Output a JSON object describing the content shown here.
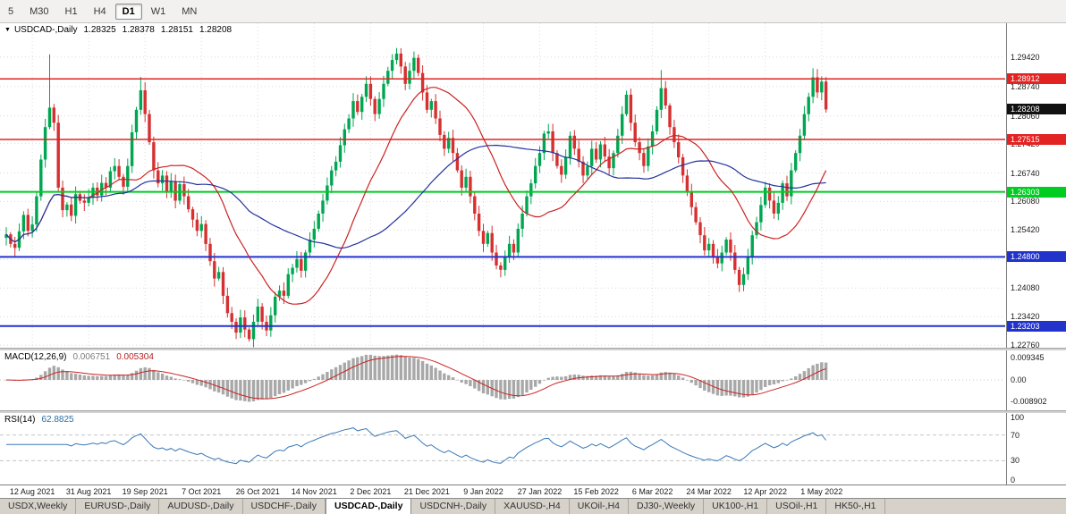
{
  "toolbar": {
    "timeframes": [
      {
        "label": "5",
        "active": false
      },
      {
        "label": "M30",
        "active": false
      },
      {
        "label": "H1",
        "active": false
      },
      {
        "label": "H4",
        "active": false
      },
      {
        "label": "D1",
        "active": true
      },
      {
        "label": "W1",
        "active": false
      },
      {
        "label": "MN",
        "active": false
      }
    ]
  },
  "main_chart": {
    "header": {
      "collapse_icon": "▼",
      "symbol": "USDCAD-,Daily",
      "open": "1.28325",
      "high": "1.28378",
      "low": "1.28151",
      "close": "1.28208"
    },
    "price_axis_labels": [
      "1.29420",
      "1.28740",
      "1.28060",
      "1.27420",
      "1.26740",
      "1.26080",
      "1.25420",
      "1.24740",
      "1.24080",
      "1.23420",
      "1.22760"
    ],
    "current_price": {
      "label": "1.28208",
      "value": 1.28208,
      "box_color": "#111111"
    }
  },
  "macd_panel": {
    "title": "MACD(12,26,9)",
    "value_main": "0.006751",
    "value_signal": "0.005304",
    "axis": [
      "0.009345",
      "0.00",
      "-0.008902"
    ]
  },
  "rsi_panel": {
    "title": "RSI(14)",
    "value": "62.8825",
    "axis": [
      100,
      70,
      30,
      0
    ],
    "guide_levels": [
      70,
      30
    ]
  },
  "tabs": [
    {
      "label": "USDX,Weekly",
      "active": false
    },
    {
      "label": "EURUSD-,Daily",
      "active": false
    },
    {
      "label": "AUDUSD-,Daily",
      "active": false
    },
    {
      "label": "USDCHF-,Daily",
      "active": false
    },
    {
      "label": "USDCAD-,Daily",
      "active": true
    },
    {
      "label": "USDCNH-,Daily",
      "active": false
    },
    {
      "label": "XAUUSD-,H4",
      "active": false
    },
    {
      "label": "UKOil-,H4",
      "active": false
    },
    {
      "label": "DJ30-,Weekly",
      "active": false
    },
    {
      "label": "UK100-,H1",
      "active": false
    },
    {
      "label": "USOil-,H1",
      "active": false
    },
    {
      "label": "HK50-,H1",
      "active": false
    }
  ],
  "chart_data": {
    "type": "candlestick",
    "title": "USDCAD-,Daily",
    "ylim": [
      1.227,
      1.302
    ],
    "x_tick_labels": [
      "12 Aug 2021",
      "31 Aug 2021",
      "19 Sep 2021",
      "7 Oct 2021",
      "26 Oct 2021",
      "14 Nov 2021",
      "2 Dec 2021",
      "21 Dec 2021",
      "9 Jan 2022",
      "27 Jan 2022",
      "15 Feb 2022",
      "6 Mar 2022",
      "24 Mar 2022",
      "12 Apr 2022",
      "1 May 2022"
    ],
    "tick_indices": [
      6,
      19,
      32,
      45,
      58,
      71,
      84,
      97,
      110,
      123,
      136,
      149,
      162,
      175,
      188
    ],
    "closes": [
      1.2532,
      1.251,
      1.2501,
      1.2539,
      1.2577,
      1.254,
      1.2555,
      1.262,
      1.2705,
      1.278,
      1.2825,
      1.279,
      1.264,
      1.2588,
      1.2601,
      1.2575,
      1.2625,
      1.261,
      1.2605,
      1.2618,
      1.264,
      1.2622,
      1.2651,
      1.264,
      1.2678,
      1.269,
      1.2665,
      1.2642,
      1.269,
      1.2768,
      1.282,
      1.2865,
      1.281,
      1.2745,
      1.268,
      1.265,
      1.2668,
      1.263,
      1.2655,
      1.261,
      1.2648,
      1.262,
      1.259,
      1.2566,
      1.254,
      1.2556,
      1.251,
      1.247,
      1.243,
      1.2445,
      1.239,
      1.235,
      1.233,
      1.2305,
      1.234,
      1.2312,
      1.229,
      1.233,
      1.2365,
      1.233,
      1.231,
      1.2345,
      1.2388,
      1.2402,
      1.239,
      1.244,
      1.2455,
      1.2475,
      1.2448,
      1.249,
      1.252,
      1.2545,
      1.258,
      1.261,
      1.2645,
      1.268,
      1.27,
      1.2738,
      1.2775,
      1.28,
      1.284,
      1.2815,
      1.285,
      1.288,
      1.2845,
      1.281,
      1.2845,
      1.288,
      1.291,
      1.2935,
      1.295,
      1.292,
      1.288,
      1.291,
      1.294,
      1.2905,
      1.286,
      1.282,
      1.284,
      1.28,
      1.2762,
      1.273,
      1.2755,
      1.272,
      1.268,
      1.264,
      1.2665,
      1.262,
      1.258,
      1.254,
      1.251,
      1.2535,
      1.249,
      1.246,
      1.245,
      1.248,
      1.251,
      1.249,
      1.2545,
      1.258,
      1.262,
      1.265,
      1.269,
      1.272,
      1.2765,
      1.277,
      1.272,
      1.269,
      1.267,
      1.271,
      1.276,
      1.273,
      1.27,
      1.2668,
      1.269,
      1.273,
      1.2705,
      1.274,
      1.2712,
      1.2685,
      1.272,
      1.276,
      1.281,
      1.2855,
      1.279,
      1.2745,
      1.272,
      1.269,
      1.2735,
      1.277,
      1.282,
      1.287,
      1.283,
      1.278,
      1.2745,
      1.271,
      1.2668,
      1.263,
      1.2595,
      1.256,
      1.253,
      1.2495,
      1.251,
      1.248,
      1.2465,
      1.249,
      1.252,
      1.249,
      1.245,
      1.2415,
      1.244,
      1.248,
      1.253,
      1.256,
      1.26,
      1.264,
      1.261,
      1.258,
      1.2605,
      1.265,
      1.262,
      1.268,
      1.272,
      1.276,
      1.281,
      1.285,
      1.2895,
      1.286,
      1.2885,
      1.28208
    ],
    "wick_overrides": {
      "10": {
        "up": 0.0123
      },
      "31": {
        "up": 0.0031
      },
      "56": {
        "down": 0.0006
      },
      "90": {
        "up": 0.0013
      },
      "151": {
        "up": 0.0042
      },
      "169": {
        "down": 0.0016
      },
      "186": {
        "up": 0.0021
      }
    },
    "levels": [
      {
        "label": "1.28912",
        "price": 1.28912,
        "color": "#e32222",
        "width": 1.5
      },
      {
        "label": "1.27515",
        "price": 1.27515,
        "color": "#e32222",
        "width": 1.5
      },
      {
        "label": "1.26303",
        "price": 1.26303,
        "color": "#00cc22",
        "width": 2
      },
      {
        "label": "1.24800",
        "price": 1.248,
        "color": "#2233cc",
        "width": 2
      },
      {
        "label": "1.23203",
        "price": 1.23203,
        "color": "#2233cc",
        "width": 2
      }
    ],
    "moving_averages": [
      {
        "period": 20,
        "color": "#cc2222"
      },
      {
        "period": 45,
        "color": "#22339e"
      }
    ],
    "indicators": {
      "macd": [
        12,
        26,
        9
      ],
      "rsi": 14
    },
    "colors": {
      "up": "#00a651",
      "down": "#d63030",
      "macd_hist": "#a8a8a8",
      "macd_signal": "#cc2222",
      "rsi_line": "#3879b8",
      "grid": "#dcdcdc"
    }
  }
}
